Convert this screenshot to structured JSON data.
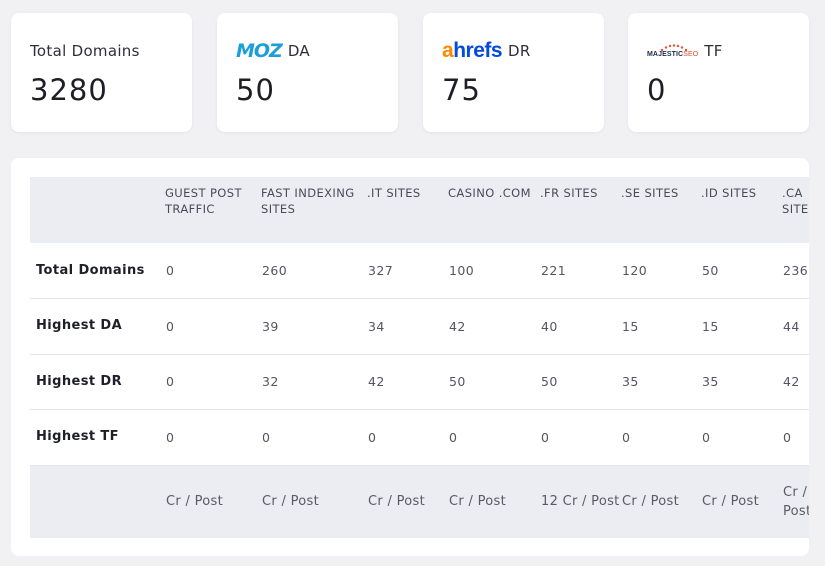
{
  "stats": {
    "total_domains": {
      "label": "Total Domains",
      "value": "3280"
    },
    "moz": {
      "logo_text": "MOZ",
      "label": "DA",
      "value": "50"
    },
    "ahrefs": {
      "logo_a": "a",
      "logo_rest": "hrefs",
      "label": "DR",
      "value": "75"
    },
    "majestic": {
      "logo_main": "MAJESTIC",
      "logo_seo": "SEO",
      "label": "TF",
      "value": "0"
    }
  },
  "table": {
    "headers": [
      "",
      "GUEST POST TRAFFIC",
      "FAST INDEXING SITES",
      ".IT SITES",
      "CASINO .COM",
      ".FR SITES",
      ".SE SITES",
      ".ID SITES",
      ".CA SITES"
    ],
    "rows": [
      {
        "label": "Total Domains",
        "values": [
          "0",
          "260",
          "327",
          "100",
          "221",
          "120",
          "50",
          "236"
        ]
      },
      {
        "label": "Highest DA",
        "values": [
          "0",
          "39",
          "34",
          "42",
          "40",
          "15",
          "15",
          "44"
        ]
      },
      {
        "label": "Highest DR",
        "values": [
          "0",
          "32",
          "42",
          "50",
          "50",
          "35",
          "35",
          "42"
        ]
      },
      {
        "label": "Highest TF",
        "values": [
          "0",
          "0",
          "0",
          "0",
          "0",
          "0",
          "0",
          "0"
        ]
      }
    ],
    "prices": [
      "Cr / Post",
      "Cr / Post",
      "Cr / Post",
      "Cr / Post",
      "12 Cr / Post",
      "Cr / Post",
      "Cr / Post",
      "Cr / Post"
    ]
  },
  "colors": {
    "moz": "#1c9ed8",
    "ahrefs_orange": "#ff8800",
    "ahrefs_blue": "#054ada",
    "majestic_dots": "#e8562a",
    "header_bg": "#ecedf3"
  }
}
